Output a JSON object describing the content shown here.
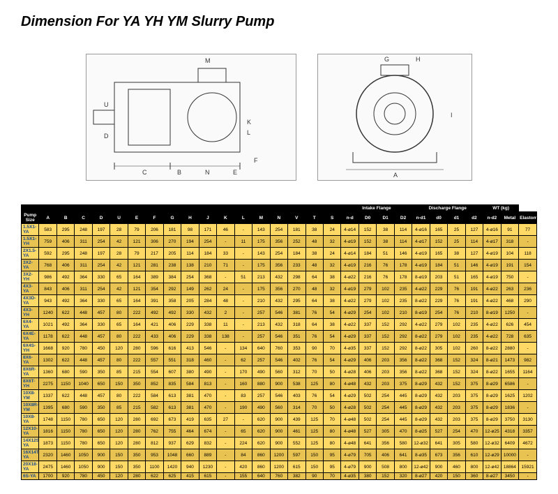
{
  "title": "Dimension For YA YH YM Slurry Pump",
  "diagram_labels": [
    "M",
    "G",
    "H",
    "U",
    "D",
    "I",
    "K",
    "L",
    "N",
    "C",
    "B",
    "E",
    "F",
    "A"
  ],
  "table": {
    "group_headers": [
      {
        "label": "",
        "span": 18
      },
      {
        "label": "Intake Flange",
        "span": 4
      },
      {
        "label": "Discharge Flange",
        "span": 4
      },
      {
        "label": "WT (kg)",
        "span": 2
      }
    ],
    "columns": [
      "Pump Size",
      "A",
      "B",
      "C",
      "D",
      "U",
      "E",
      "F",
      "G",
      "H",
      "J",
      "K",
      "L",
      "M",
      "N",
      "V",
      "T",
      "S",
      "n-d",
      "D0",
      "D1",
      "D2",
      "n-d1",
      "d0",
      "d1",
      "d2",
      "n-d2",
      "Metal",
      "Elastomer"
    ],
    "rows": [
      [
        "1.5X1-YA",
        "583",
        "295",
        "248",
        "197",
        "28",
        "79",
        "206",
        "181",
        "98",
        "171",
        "46",
        "-",
        "143",
        "254",
        "181",
        "38",
        "24",
        "4-ø14",
        "152",
        "38",
        "114",
        "4-ø16",
        "165",
        "25",
        "127",
        "4-ø16",
        "91",
        "77"
      ],
      [
        "1.5X1-YH",
        "759",
        "406",
        "311",
        "254",
        "42",
        "121",
        "306",
        "270",
        "194",
        "254",
        "-",
        "11",
        "175",
        "356",
        "252",
        "48",
        "32",
        "4-ø19",
        "152",
        "38",
        "114",
        "4-ø17",
        "152",
        "25",
        "114",
        "4-ø17",
        "318",
        "-"
      ],
      [
        "2X1.5-YA",
        "592",
        "295",
        "248",
        "197",
        "28",
        "79",
        "217",
        "205",
        "114",
        "184",
        "33",
        "-",
        "143",
        "254",
        "184",
        "38",
        "24",
        "4-ø14",
        "184",
        "51",
        "146",
        "4-ø19",
        "165",
        "38",
        "127",
        "4-ø19",
        "104",
        "118"
      ],
      [
        "3X2-YA",
        "768",
        "406",
        "311",
        "254",
        "42",
        "121",
        "281",
        "238",
        "138",
        "210",
        "71",
        "-",
        "175",
        "356",
        "233",
        "48",
        "32",
        "4-ø19",
        "216",
        "76",
        "178",
        "4-ø19",
        "184",
        "51",
        "146",
        "4-ø19",
        "191",
        "154"
      ],
      [
        "3X2-YH",
        "986",
        "492",
        "364",
        "330",
        "65",
        "164",
        "389",
        "384",
        "254",
        "368",
        "-",
        "51",
        "213",
        "432",
        "298",
        "64",
        "38",
        "4-ø22",
        "216",
        "76",
        "178",
        "8-ø19",
        "203",
        "51",
        "165",
        "4-ø19",
        "750",
        "-"
      ],
      [
        "4X3-YA",
        "843",
        "406",
        "311",
        "254",
        "42",
        "121",
        "354",
        "292",
        "149",
        "262",
        "24",
        "-",
        "175",
        "356",
        "270",
        "48",
        "32",
        "4-ø19",
        "279",
        "102",
        "235",
        "4-ø22",
        "229",
        "76",
        "191",
        "4-ø22",
        "263",
        "236"
      ],
      [
        "4X3D-YA",
        "943",
        "492",
        "364",
        "330",
        "65",
        "164",
        "391",
        "358",
        "205",
        "284",
        "48",
        "-",
        "210",
        "432",
        "295",
        "64",
        "38",
        "4-ø22",
        "279",
        "102",
        "235",
        "8-ø22",
        "229",
        "76",
        "191",
        "4-ø22",
        "468",
        "290"
      ],
      [
        "4X3-YH",
        "1240",
        "622",
        "448",
        "457",
        "80",
        "222",
        "492",
        "492",
        "330",
        "432",
        "2",
        "-",
        "257",
        "546",
        "381",
        "76",
        "54",
        "4-ø29",
        "254",
        "102",
        "210",
        "8-ø19",
        "254",
        "76",
        "210",
        "8-ø19",
        "1250",
        "-"
      ],
      [
        "6X4-YA",
        "1021",
        "492",
        "364",
        "330",
        "65",
        "164",
        "421",
        "406",
        "229",
        "338",
        "11",
        "-",
        "213",
        "432",
        "318",
        "64",
        "38",
        "4-ø22",
        "337",
        "152",
        "292",
        "4-ø22",
        "279",
        "102",
        "235",
        "4-ø22",
        "626",
        "454"
      ],
      [
        "6X4E-YA",
        "1178",
        "622",
        "448",
        "457",
        "80",
        "222",
        "433",
        "406",
        "229",
        "338",
        "138",
        "-",
        "257",
        "546",
        "351",
        "76",
        "54",
        "4-ø29",
        "337",
        "152",
        "292",
        "8-ø22",
        "279",
        "102",
        "235",
        "4-ø22",
        "728",
        "635"
      ],
      [
        "6X4S-YH",
        "1668",
        "920",
        "780",
        "450",
        "120",
        "280",
        "596",
        "616",
        "413",
        "546",
        "-",
        "134",
        "640",
        "760",
        "353",
        "90",
        "70",
        "4-ø35",
        "337",
        "152",
        "292",
        "8-ø22",
        "305",
        "102",
        "260",
        "8-ø22",
        "2880",
        "-"
      ],
      [
        "8X6-YA",
        "1302",
        "622",
        "448",
        "457",
        "80",
        "222",
        "557",
        "551",
        "318",
        "460",
        "-",
        "62",
        "257",
        "546",
        "402",
        "76",
        "54",
        "4-ø29",
        "406",
        "203",
        "356",
        "8-ø22",
        "368",
        "152",
        "324",
        "8-ø21",
        "1473",
        "982"
      ],
      [
        "8X6R-YA",
        "1360",
        "680",
        "590",
        "350",
        "85",
        "215",
        "554",
        "607",
        "380",
        "490",
        "-",
        "170",
        "490",
        "560",
        "312",
        "70",
        "50",
        "4-ø28",
        "406",
        "203",
        "356",
        "8-ø22",
        "368",
        "152",
        "324",
        "8-ø22",
        "1655",
        "1164"
      ],
      [
        "8X6T-YH",
        "2275",
        "1150",
        "1040",
        "650",
        "150",
        "350",
        "852",
        "835",
        "584",
        "813",
        "-",
        "160",
        "880",
        "900",
        "538",
        "125",
        "80",
        "4-ø48",
        "432",
        "203",
        "375",
        "8-ø29",
        "432",
        "152",
        "375",
        "8-ø29",
        "6586",
        "-"
      ],
      [
        "10X8-YM",
        "1337",
        "622",
        "448",
        "457",
        "80",
        "222",
        "584",
        "613",
        "381",
        "470",
        "-",
        "83",
        "257",
        "546",
        "403",
        "76",
        "54",
        "4-ø29",
        "502",
        "254",
        "445",
        "8-ø29",
        "432",
        "203",
        "375",
        "8-ø29",
        "1625",
        "1202"
      ],
      [
        "10X8R-YM",
        "1395",
        "680",
        "590",
        "350",
        "85",
        "215",
        "582",
        "613",
        "381",
        "470",
        "-",
        "190",
        "490",
        "560",
        "314",
        "70",
        "50",
        "4-ø28",
        "502",
        "254",
        "445",
        "8-ø29",
        "432",
        "203",
        "375",
        "8-ø29",
        "1836",
        "-"
      ],
      [
        "10X8-YA",
        "1748",
        "1150",
        "780",
        "650",
        "120",
        "280",
        "692",
        "673",
        "419",
        "635",
        "27",
        "-",
        "620",
        "900",
        "439",
        "125",
        "70",
        "4-ø48",
        "502",
        "254",
        "445",
        "8-ø29",
        "432",
        "203",
        "375",
        "8-ø29",
        "3750",
        "3130"
      ],
      [
        "12X10-YA",
        "1816",
        "1150",
        "780",
        "650",
        "120",
        "280",
        "762",
        "755",
        "464",
        "674",
        "-",
        "65",
        "620",
        "900",
        "461",
        "125",
        "80",
        "4-ø48",
        "527",
        "305",
        "470",
        "8-ø25",
        "527",
        "254",
        "470",
        "12-ø25",
        "4318",
        "3357"
      ],
      [
        "14X12S-YA",
        "1873",
        "1150",
        "780",
        "650",
        "120",
        "280",
        "812",
        "937",
        "629",
        "832",
        "-",
        "224",
        "620",
        "900",
        "552",
        "125",
        "80",
        "4-ø48",
        "641",
        "356",
        "580",
        "12-ø32",
        "641",
        "305",
        "580",
        "12-ø32",
        "6409",
        "4672"
      ],
      [
        "16X14T-YA",
        "2320",
        "1460",
        "1050",
        "900",
        "150",
        "350",
        "953",
        "1048",
        "660",
        "889",
        "-",
        "84",
        "860",
        "1200",
        "597",
        "150",
        "95",
        "4-ø79",
        "705",
        "406",
        "641",
        "8-ø35",
        "673",
        "356",
        "610",
        "12-ø29",
        "10000",
        "-"
      ],
      [
        "20X18-YA",
        "2475",
        "1460",
        "1050",
        "900",
        "150",
        "350",
        "1100",
        "1420",
        "940",
        "1230",
        "-",
        "420",
        "860",
        "1200",
        "615",
        "150",
        "95",
        "4-ø79",
        "900",
        "508",
        "800",
        "12-ø42",
        "900",
        "460",
        "800",
        "12-ø42",
        "18864",
        "15921"
      ],
      [
        "6S-YA",
        "1700",
        "920",
        "780",
        "450",
        "120",
        "280",
        "622",
        "625",
        "415",
        "615",
        "-",
        "155",
        "640",
        "760",
        "382",
        "90",
        "70",
        "4-ø35",
        "380",
        "152",
        "320",
        "8-ø27",
        "420",
        "150",
        "360",
        "8-ø27",
        "3450",
        "-"
      ]
    ]
  },
  "colors": {
    "header_bg": "#000000",
    "header_fg": "#ffffff",
    "row_odd": "#ffd966",
    "row_even": "#e8c352",
    "size_fg": "#1a4b8c"
  }
}
